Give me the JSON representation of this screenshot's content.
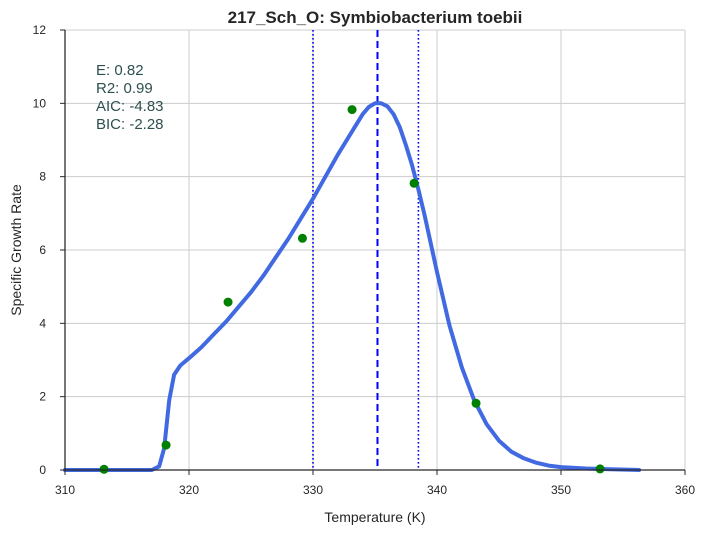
{
  "chart_data": {
    "type": "scatter",
    "title": "217_Sch_O: Symbiobacterium toebii",
    "xlabel": "Temperature (K)",
    "ylabel": "Specific Growth Rate",
    "xlim": [
      310,
      360
    ],
    "ylim": [
      0,
      12
    ],
    "xticks": [
      310,
      320,
      330,
      340,
      350,
      360
    ],
    "yticks": [
      0,
      2,
      4,
      6,
      8,
      10,
      12
    ],
    "grid": true,
    "stats": [
      "E:  0.82",
      "R2:  0.99",
      "AIC: -4.83",
      "BIC: -2.28"
    ],
    "series": [
      {
        "kind": "points",
        "color": "#008000",
        "x": [
          313.15,
          318.15,
          323.15,
          329.15,
          333.15,
          338.15,
          343.15,
          353.15
        ],
        "y": [
          0.02,
          0.68,
          4.58,
          6.32,
          9.83,
          7.82,
          1.82,
          0.03
        ]
      },
      {
        "kind": "line",
        "color": "#4169e1",
        "x": [
          310.0,
          317.0,
          317.6,
          318.0,
          318.4,
          318.8,
          319.3,
          320.0,
          321.0,
          322.0,
          323.0,
          324.0,
          325.0,
          326.0,
          327.0,
          328.0,
          329.0,
          330.0,
          331.0,
          332.0,
          333.0,
          334.0,
          334.5,
          335.0,
          335.5,
          336.0,
          336.5,
          337.0,
          337.5,
          338.0,
          338.5,
          339.0,
          340.0,
          341.0,
          342.0,
          343.0,
          344.0,
          345.0,
          346.0,
          347.0,
          348.0,
          349.0,
          350.0,
          352.0,
          354.0,
          356.3
        ],
        "y": [
          0.0,
          0.0,
          0.1,
          0.6,
          1.9,
          2.6,
          2.85,
          3.05,
          3.35,
          3.7,
          4.05,
          4.45,
          4.85,
          5.3,
          5.8,
          6.3,
          6.85,
          7.4,
          8.0,
          8.6,
          9.15,
          9.7,
          9.9,
          10.0,
          10.0,
          9.92,
          9.7,
          9.35,
          8.85,
          8.3,
          7.65,
          6.95,
          5.4,
          3.95,
          2.8,
          1.9,
          1.25,
          0.8,
          0.5,
          0.32,
          0.2,
          0.12,
          0.08,
          0.04,
          0.02,
          0.0
        ]
      }
    ],
    "vlines": [
      {
        "x": 335.2,
        "style": "dashed",
        "color": "#0000ff"
      },
      {
        "x": 330.0,
        "style": "dotted",
        "color": "#0000ff"
      },
      {
        "x": 338.5,
        "style": "dotted",
        "color": "#0000ff"
      }
    ]
  }
}
